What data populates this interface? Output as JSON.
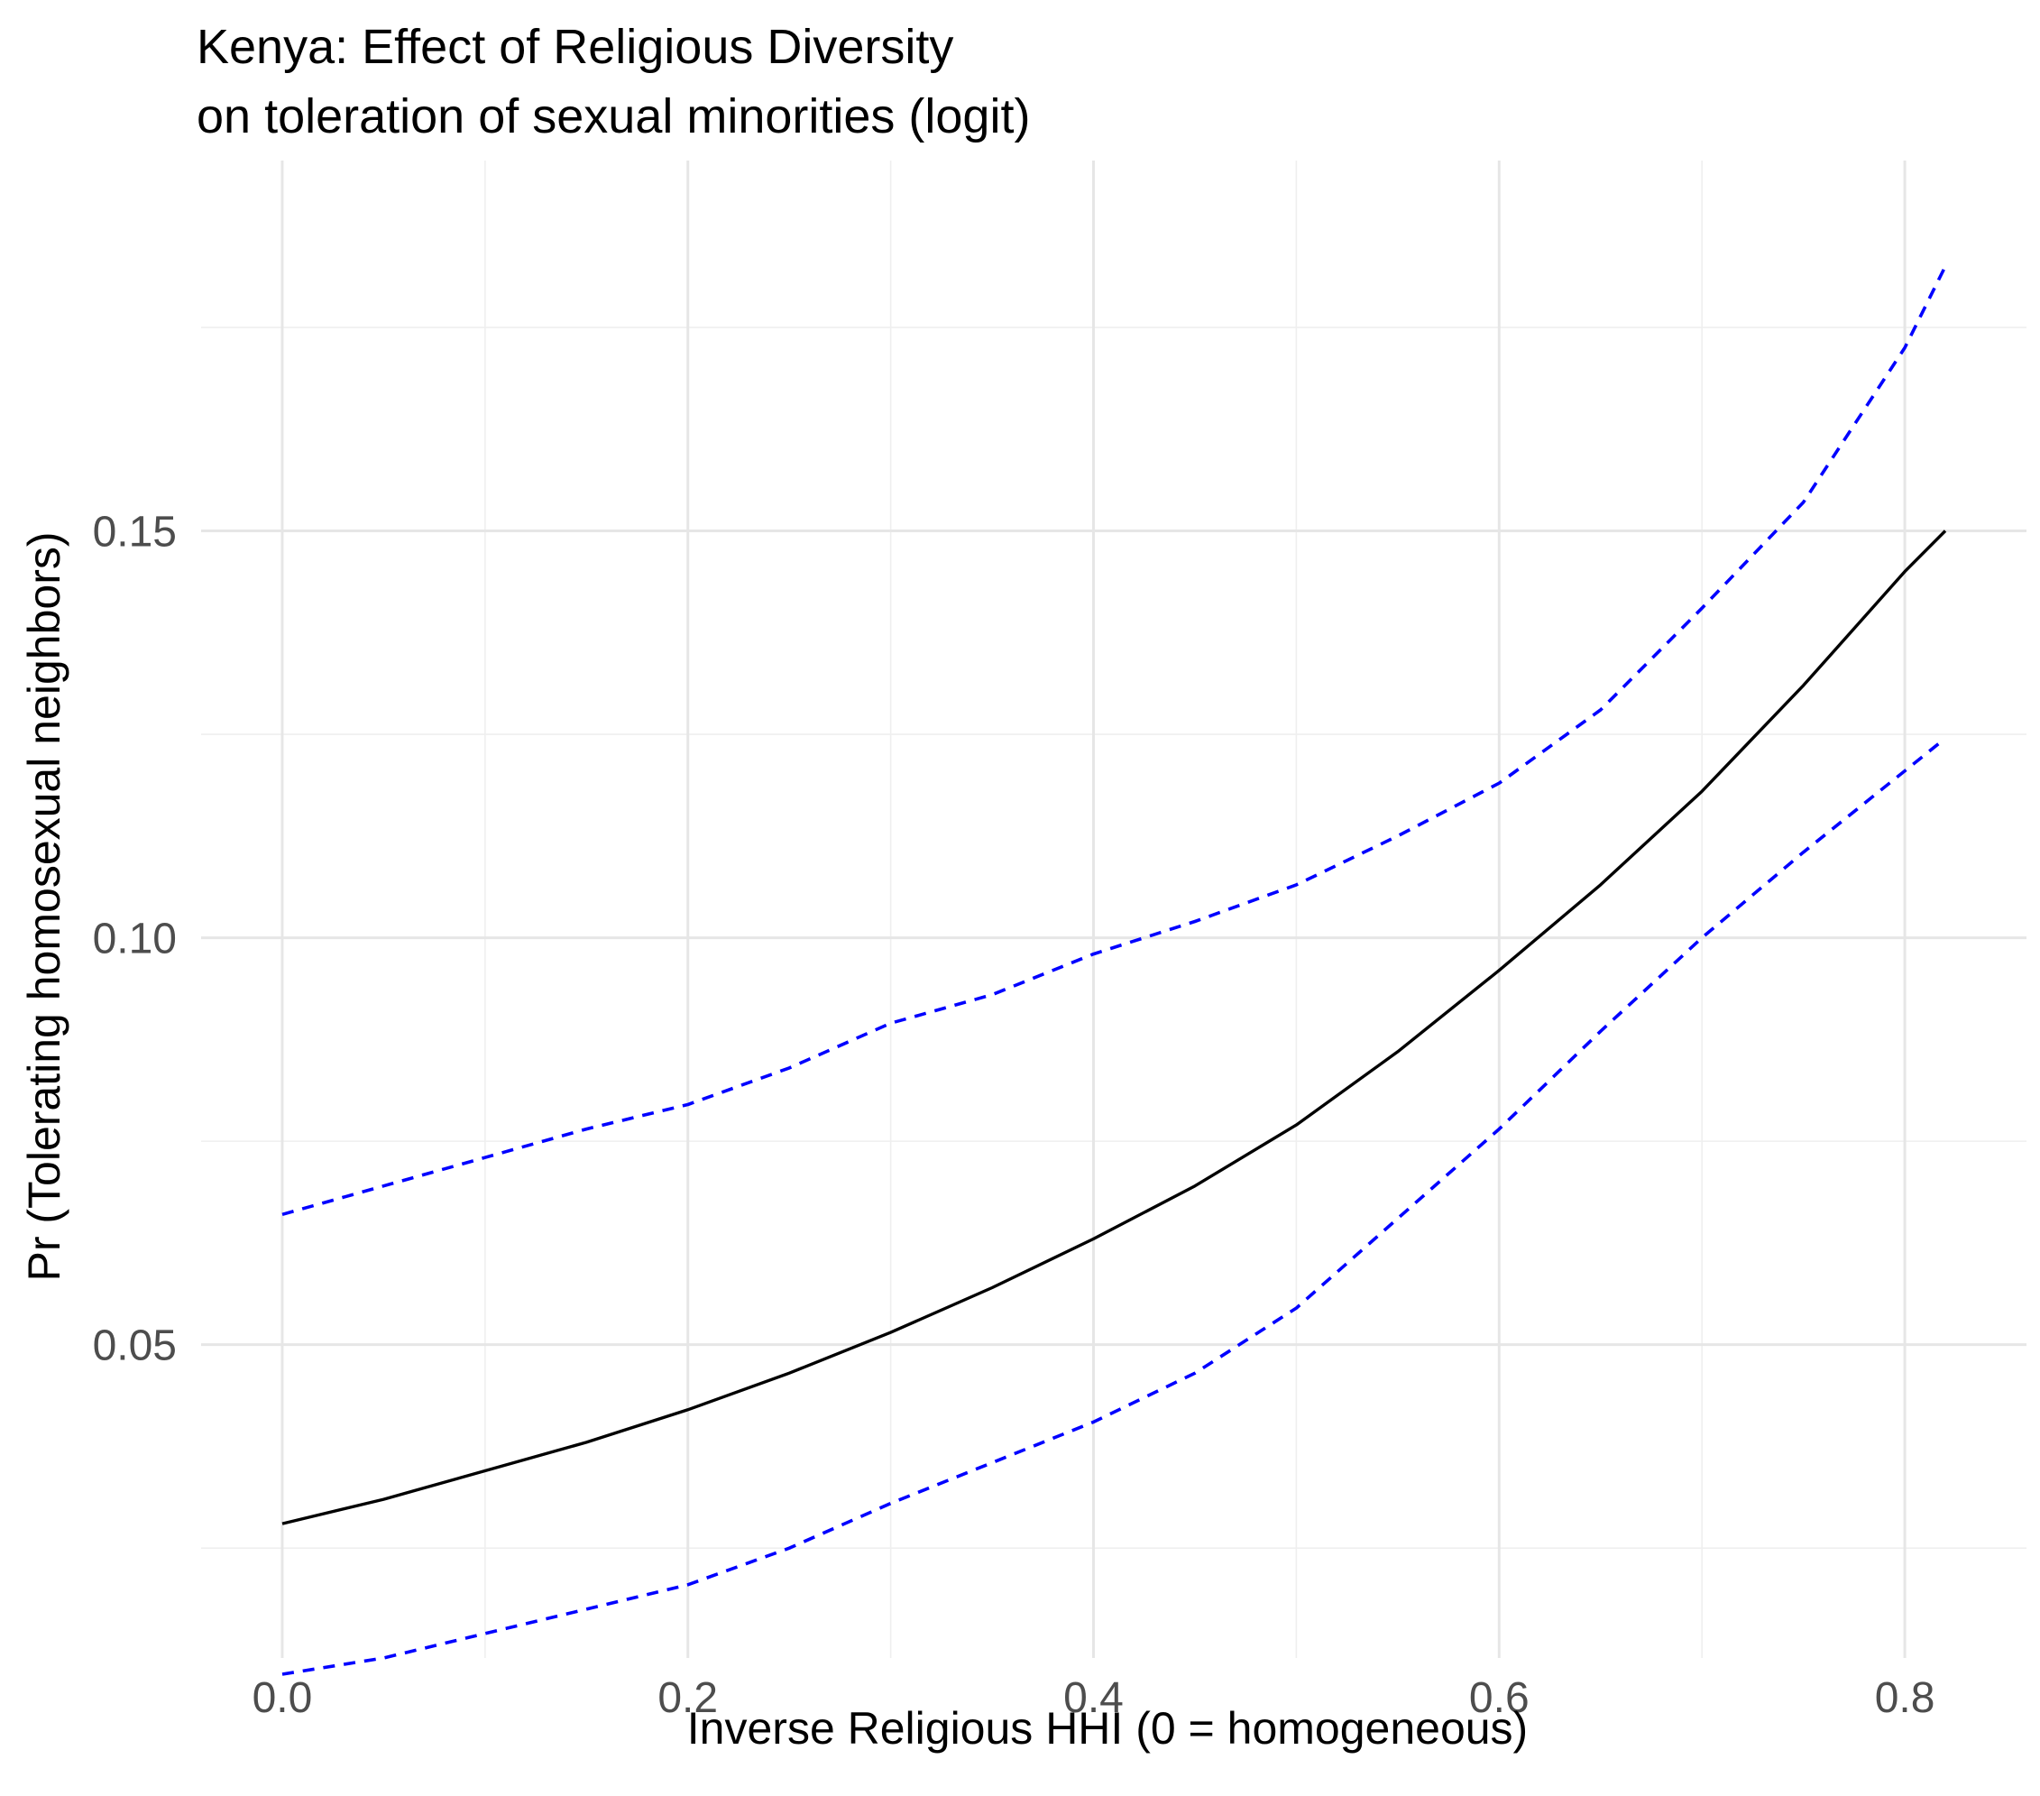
{
  "chart_data": {
    "type": "line",
    "title": "Kenya: Effect of Religious Diversity",
    "subtitle": "on toleration of sexual minorities (logit)",
    "xlabel": "Inverse Religious HHI (0 = homogeneous)",
    "ylabel": "Pr (Tolerating homosexual neighbors)",
    "xlim": [
      -0.04,
      0.86
    ],
    "ylim": [
      0.0115,
      0.1955
    ],
    "x_ticks": [
      0.0,
      0.2,
      0.4,
      0.6,
      0.8
    ],
    "x_tick_labels": [
      "0.0",
      "0.2",
      "0.4",
      "0.6",
      "0.8"
    ],
    "y_ticks": [
      0.05,
      0.1,
      0.15
    ],
    "y_tick_labels": [
      "0.05",
      "0.10",
      "0.15"
    ],
    "grid": true,
    "legend": "none",
    "series": [
      {
        "line_style": "solid",
        "color": "#000000",
        "x": [
          0.0,
          0.05,
          0.1,
          0.15,
          0.2,
          0.25,
          0.3,
          0.35,
          0.4,
          0.45,
          0.5,
          0.55,
          0.6,
          0.65,
          0.7,
          0.75,
          0.8,
          0.82
        ],
        "y": [
          0.028,
          0.031,
          0.0345,
          0.038,
          0.042,
          0.0465,
          0.0515,
          0.057,
          0.063,
          0.0695,
          0.077,
          0.086,
          0.096,
          0.1065,
          0.118,
          0.131,
          0.145,
          0.15
        ]
      },
      {
        "line_style": "dashed",
        "color": "#0000ff",
        "x": [
          0.0,
          0.05,
          0.1,
          0.15,
          0.2,
          0.25,
          0.3,
          0.35,
          0.4,
          0.45,
          0.5,
          0.55,
          0.6,
          0.65,
          0.7,
          0.75,
          0.8,
          0.82
        ],
        "y": [
          0.066,
          0.0695,
          0.073,
          0.0765,
          0.0795,
          0.084,
          0.0895,
          0.093,
          0.098,
          0.102,
          0.1065,
          0.1125,
          0.119,
          0.128,
          0.1405,
          0.1535,
          0.1725,
          0.1825
        ]
      },
      {
        "line_style": "dashed",
        "color": "#0000ff",
        "x": [
          0.0,
          0.05,
          0.1,
          0.15,
          0.2,
          0.25,
          0.3,
          0.35,
          0.4,
          0.45,
          0.5,
          0.55,
          0.6,
          0.65,
          0.7,
          0.75,
          0.8,
          0.82
        ],
        "y": [
          0.0095,
          0.0115,
          0.0145,
          0.0175,
          0.0205,
          0.025,
          0.0305,
          0.0355,
          0.0405,
          0.0465,
          0.0545,
          0.0655,
          0.0765,
          0.0885,
          0.1,
          0.1105,
          0.1205,
          0.1245
        ]
      }
    ]
  }
}
